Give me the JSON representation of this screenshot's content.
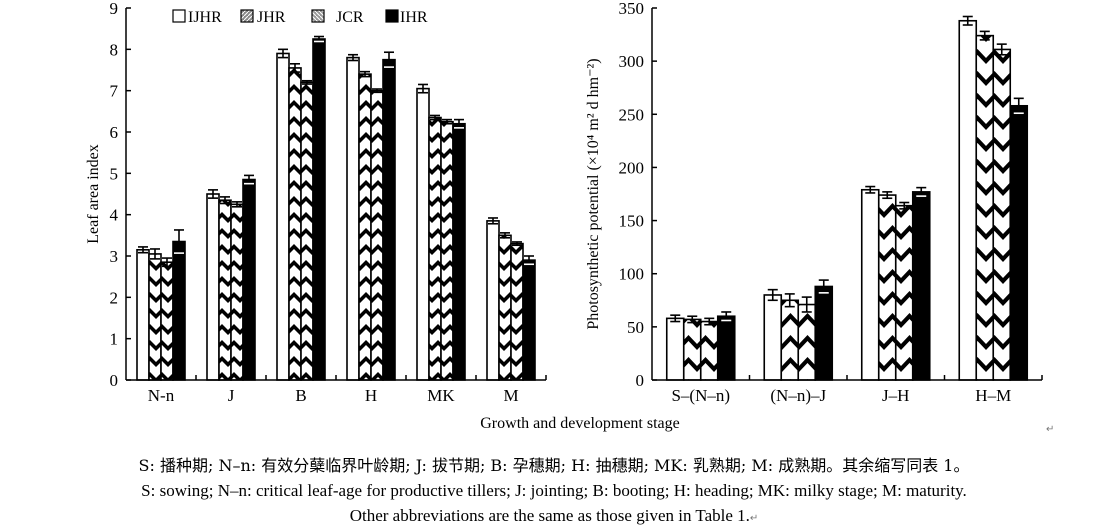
{
  "chart_data": [
    {
      "type": "bar",
      "title": "",
      "xlabel": "",
      "ylabel": "Leaf area index",
      "ylim": [
        0,
        9
      ],
      "yticks": [
        "0",
        "1",
        "2",
        "3",
        "4",
        "5",
        "6",
        "7",
        "8",
        "9"
      ],
      "categories": [
        "N-n",
        "J",
        "B",
        "H",
        "MK",
        "M"
      ],
      "error_bars": true,
      "legend_position": "top",
      "series": [
        {
          "name": "IJHR",
          "pattern": "white",
          "values": [
            3.15,
            4.5,
            7.9,
            7.8,
            7.05,
            3.85
          ],
          "errors": [
            0.07,
            0.1,
            0.1,
            0.07,
            0.1,
            0.07
          ]
        },
        {
          "name": "JHR",
          "pattern": "chevron",
          "values": [
            3.05,
            4.35,
            7.55,
            7.4,
            6.35,
            3.5
          ],
          "errors": [
            0.12,
            0.08,
            0.1,
            0.06,
            0.05,
            0.06
          ]
        },
        {
          "name": "JCR",
          "pattern": "chevron",
          "values": [
            2.85,
            4.25,
            7.2,
            7.0,
            6.25,
            3.3
          ],
          "errors": [
            0.1,
            0.06,
            0.04,
            0.04,
            0.05,
            0.04
          ]
        },
        {
          "name": "IHR",
          "pattern": "black",
          "values": [
            3.35,
            4.85,
            8.25,
            7.75,
            6.2,
            2.9
          ],
          "errors": [
            0.28,
            0.1,
            0.06,
            0.18,
            0.1,
            0.1
          ]
        }
      ]
    },
    {
      "type": "bar",
      "title": "",
      "xlabel": "",
      "ylabel": "Photosynthetic potential (×10⁴ m² d hm⁻²)",
      "ylim": [
        0,
        350
      ],
      "yticks": [
        "0",
        "50",
        "100",
        "150",
        "200",
        "250",
        "300",
        "350"
      ],
      "categories": [
        "S–(N–n)",
        "(N–n)–J",
        "J–H",
        "H–M"
      ],
      "error_bars": true,
      "series": [
        {
          "name": "IJHR",
          "pattern": "white",
          "values": [
            58,
            80,
            179,
            338
          ],
          "errors": [
            3,
            5,
            3,
            4
          ]
        },
        {
          "name": "JHR",
          "pattern": "chevron",
          "values": [
            57,
            75,
            174,
            324
          ],
          "errors": [
            3,
            6,
            3,
            4
          ]
        },
        {
          "name": "JCR",
          "pattern": "chevron",
          "values": [
            55,
            71,
            164,
            311
          ],
          "errors": [
            3,
            7,
            3,
            5
          ]
        },
        {
          "name": "IHR",
          "pattern": "black",
          "values": [
            60,
            88,
            177,
            258
          ],
          "errors": [
            4,
            6,
            4,
            7
          ]
        }
      ]
    }
  ],
  "shared_xlabel": "Growth and development stage",
  "legend": [
    "IJHR",
    "JHR",
    "JCR",
    "IHR"
  ],
  "caption": {
    "line_cn": "S: 播种期; N–n: 有效分蘖临界叶龄期; J: 拔节期; B: 孕穗期; H: 抽穗期; MK: 乳熟期; M: 成熟期。其余缩写同表 1。",
    "line_en1": "S: sowing; N–n: critical leaf-age for productive tillers; J: jointing; B: booting; H: heading; MK: milky stage; M: maturity.",
    "line_en2": "Other abbreviations are the same as those given in Table 1.",
    "return_mark": "↵"
  }
}
